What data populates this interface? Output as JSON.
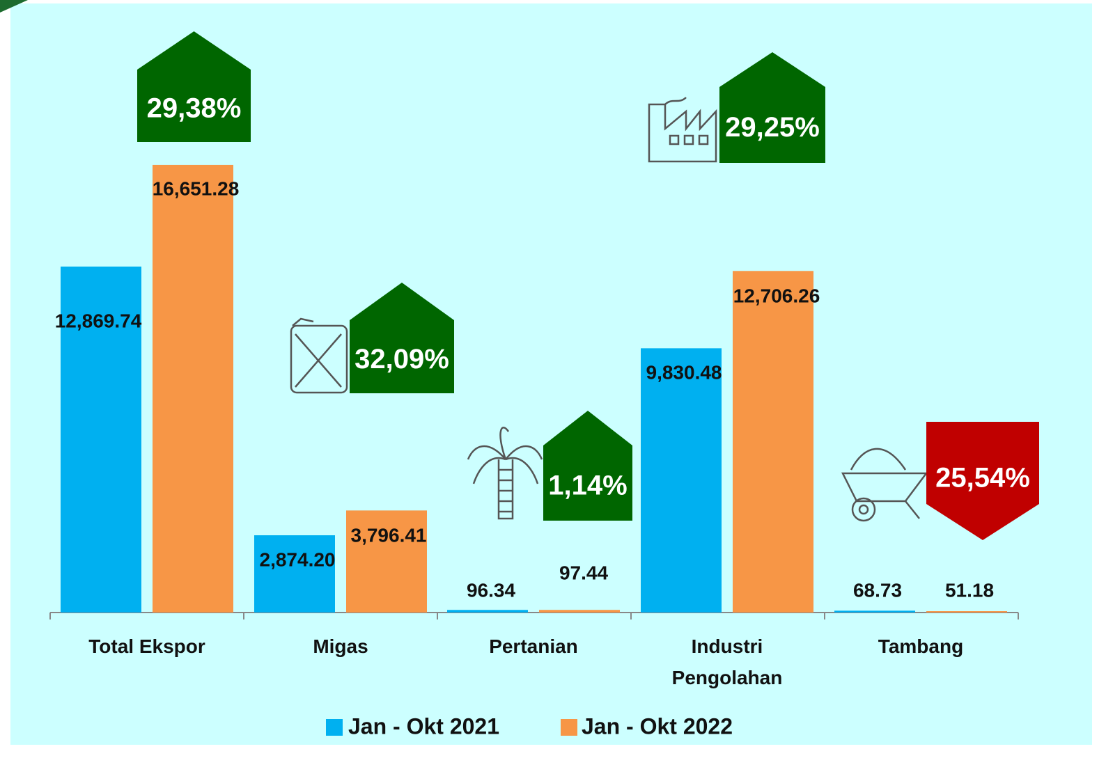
{
  "chart_data": {
    "type": "bar",
    "categories": [
      "Total Ekspor",
      "Migas",
      "Pertanian",
      "Industri Pengolahan",
      "Tambang"
    ],
    "series": [
      {
        "name": "Jan - Okt 2021",
        "color": "#00b0f0",
        "values": [
          12869.74,
          2874.2,
          96.34,
          9830.48,
          68.73
        ],
        "value_labels": [
          "12,869.74",
          "2,874.20",
          "96.34",
          "9,830.48",
          "68.73"
        ]
      },
      {
        "name": "Jan - Okt 2022",
        "color": "#f79646",
        "values": [
          16651.28,
          3796.41,
          97.44,
          12706.26,
          51.18
        ],
        "value_labels": [
          "16,651.28",
          "3,796.41",
          "97.44",
          "12,706.26",
          "51.18"
        ]
      }
    ],
    "ylim": [
      0,
      20000
    ],
    "annotations": [
      {
        "text": "29,38%",
        "direction": "up",
        "color": "#006600"
      },
      {
        "text": "32,09%",
        "direction": "up",
        "color": "#006600"
      },
      {
        "text": "1,14%",
        "direction": "up",
        "color": "#006600"
      },
      {
        "text": "29,25%",
        "direction": "up",
        "color": "#006600"
      },
      {
        "text": "25,54%",
        "direction": "down",
        "color": "#c00000"
      }
    ],
    "legend": "bottom"
  }
}
